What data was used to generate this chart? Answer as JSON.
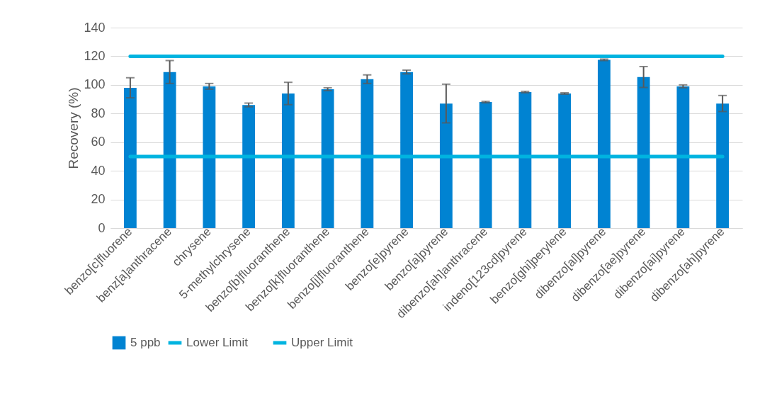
{
  "chart_data": {
    "type": "bar",
    "ylabel": "Recovery (%)",
    "categories": [
      "benzo[c]fluorene",
      "benz[a]anthracene",
      "chrysene",
      "5-methylchrysene",
      "benzo[b]fluoranthene",
      "benzo[k]fluoranthene",
      "benzo[j]fluoranthene",
      "benzo[e]pyrene",
      "benzo[a]pyrene",
      "dibenzo[ah]anthracene",
      "indeno[123cd]pyrene",
      "benzo[ghi]perylene",
      "dibenzo[al]pyrene",
      "dibenzo[ae]pyrene",
      "dibenzo[ai]pyrene",
      "dibenzo[ah]pyrene"
    ],
    "series": [
      {
        "name": "5 ppb",
        "color": "#0083d2",
        "values": [
          98,
          109,
          99,
          86,
          94,
          97,
          104,
          109,
          87,
          88,
          95,
          94,
          117.5,
          105.5,
          99,
          87
        ],
        "errors": [
          7,
          8,
          2,
          1.3,
          7.8,
          1,
          3,
          1.3,
          13.5,
          0.5,
          0.5,
          0.5,
          0.5,
          7.3,
          1,
          5.6
        ]
      },
      {
        "name": "Lower Limit",
        "type": "line",
        "color": "#00b4e0",
        "values": [
          50,
          50,
          50,
          50,
          50,
          50,
          50,
          50,
          50,
          50,
          50,
          50,
          50,
          50,
          50,
          50
        ]
      },
      {
        "name": "Upper Limit",
        "type": "line",
        "color": "#00b4e0",
        "values": [
          120,
          120,
          120,
          120,
          120,
          120,
          120,
          120,
          120,
          120,
          120,
          120,
          120,
          120,
          120,
          120
        ]
      }
    ],
    "ylim": [
      0,
      140
    ],
    "yticks": [
      0,
      20,
      40,
      60,
      80,
      100,
      120,
      140
    ],
    "grid": "y",
    "legend": "bottom"
  }
}
